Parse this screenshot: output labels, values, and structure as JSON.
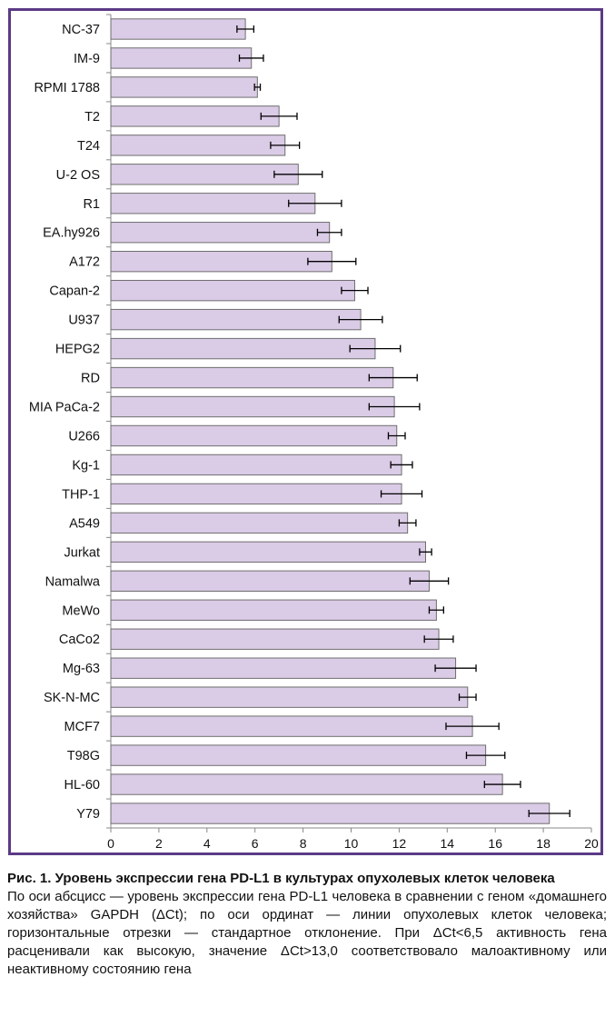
{
  "chart_data": {
    "type": "bar",
    "orientation": "horizontal",
    "categories": [
      "NC-37",
      "IM-9",
      "RPMI 1788",
      "T2",
      "T24",
      "U-2 OS",
      "R1",
      "EA.hy926",
      "A172",
      "Capan-2",
      "U937",
      "HEPG2",
      "RD",
      "MIA PaCa-2",
      "U266",
      "Kg-1",
      "THP-1",
      "A549",
      "Jurkat",
      "Namalwa",
      "MeWo",
      "CaCo2",
      "Mg-63",
      "SK-N-MC",
      "MCF7",
      "T98G",
      "HL-60",
      "Y79"
    ],
    "values": [
      5.6,
      5.85,
      6.1,
      7.0,
      7.25,
      7.8,
      8.5,
      9.1,
      9.2,
      10.15,
      10.4,
      11.0,
      11.75,
      11.8,
      11.9,
      12.1,
      12.1,
      12.35,
      13.1,
      13.25,
      13.55,
      13.65,
      14.35,
      14.85,
      15.05,
      15.6,
      16.3,
      18.25
    ],
    "errors": [
      0.35,
      0.5,
      0.12,
      0.75,
      0.6,
      1.0,
      1.1,
      0.5,
      1.0,
      0.55,
      0.9,
      1.05,
      1.0,
      1.05,
      0.35,
      0.45,
      0.85,
      0.35,
      0.25,
      0.8,
      0.3,
      0.6,
      0.85,
      0.35,
      1.1,
      0.8,
      0.75,
      0.85
    ],
    "xlim": [
      0,
      20
    ],
    "xticks": [
      0,
      2,
      4,
      6,
      8,
      10,
      12,
      14,
      16,
      18,
      20
    ],
    "xlabel": "",
    "ylabel": "",
    "grid": false,
    "legend": "none"
  },
  "colors": {
    "bar_fill": "#dacbe6",
    "bar_stroke": "#6e6e6e",
    "error_bar": "#000000",
    "frame": "#5b3a86"
  },
  "caption": {
    "title": "Рис. 1. Уровень экспрессии гена PD-L1 в культурах опухолевых клеток человека",
    "body": "По оси абсцисс — уровень экспрессии гена PD-L1 человека в сравнении с геном «домашнего хозяйства» GAPDH (ΔCt); по оси ординат — линии опухолевых клеток человека; горизонтальные отрезки — стандартное отклонение. При ΔCt<6,5 активность гена расценивали как высокую, значение ΔCt>13,0 соответствовало малоактивному или неактивному состоянию гена"
  }
}
